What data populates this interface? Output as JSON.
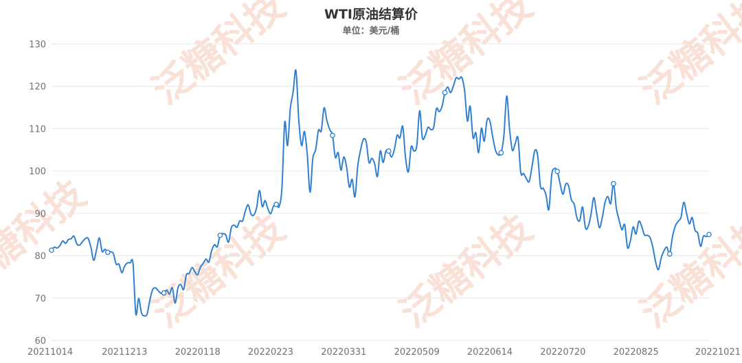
{
  "chart_data": {
    "type": "line",
    "title": "WTI原油结算价",
    "subtitle": "单位：美元/桶",
    "watermark": "泛糖科技",
    "ylim": [
      60,
      130
    ],
    "yticks": [
      60,
      70,
      80,
      90,
      100,
      110,
      120,
      130
    ],
    "xticks": [
      "20211014",
      "20211213",
      "20220118",
      "20220223",
      "20220331",
      "20220509",
      "20220614",
      "20220720",
      "20220825",
      "20221021"
    ],
    "line_color": "#2f7fd0",
    "grid": true,
    "series": [
      {
        "values": [
          81.3,
          82.0,
          81.8,
          82.4,
          83.5,
          82.9,
          83.8,
          84.0,
          84.6,
          82.8,
          82.5,
          83.3,
          84.0,
          84.1,
          82.0,
          78.9,
          81.3,
          84.2,
          81.0,
          81.5,
          80.8,
          80.9,
          80.5,
          78.0,
          78.0,
          76.0,
          77.5,
          78.3,
          78.3,
          78.2,
          66.2,
          69.9,
          66.5,
          65.8,
          66.2,
          69.5,
          72.0,
          72.4,
          71.7,
          71.1,
          71.2,
          71.9,
          70.9,
          72.4,
          68.8,
          72.4,
          73.2,
          72.0,
          75.5,
          75.8,
          77.2,
          76.2,
          75.5,
          77.3,
          78.2,
          79.2,
          78.5,
          81.2,
          82.6,
          82.1,
          84.8,
          85.2,
          84.9,
          83.2,
          86.6,
          87.2,
          86.7,
          88.2,
          88.2,
          90.6,
          92.0,
          89.8,
          89.6,
          91.4,
          95.4,
          91.6,
          93.0,
          91.1,
          89.9,
          91.7,
          92.1,
          91.6,
          96.0,
          111.5,
          106.0,
          114.8,
          118.7,
          123.7,
          112.0,
          106.0,
          109.3,
          104.0,
          95.0,
          103.0,
          105.0,
          109.6,
          109.5,
          114.9,
          111.9,
          109.8,
          108.4,
          103.2,
          104.3,
          100.2,
          103.3,
          101.0,
          96.2,
          98.0,
          93.9,
          101.3,
          105.0,
          107.5,
          106.8,
          102.0,
          103.0,
          101.7,
          98.7,
          104.7,
          102.0,
          104.7,
          104.7,
          103.3,
          105.0,
          108.4,
          107.8,
          110.5,
          103.1,
          99.8,
          105.7,
          104.7,
          106.0,
          114.2,
          107.8,
          108.4,
          110.3,
          109.8,
          110.3,
          114.7,
          114.0,
          115.3,
          118.5,
          119.8,
          118.5,
          120.0,
          122.0,
          121.7,
          122.1,
          119.0,
          111.8,
          115.3,
          107.9,
          109.0,
          104.3,
          110.1,
          107.0,
          112.0,
          111.8,
          108.1,
          104.9,
          103.8,
          104.3,
          108.3,
          117.7,
          110.0,
          104.9,
          106.4,
          107.8,
          99.6,
          99.4,
          98.2,
          97.5,
          101.0,
          104.8,
          103.7,
          96.4,
          95.9,
          94.3,
          90.9,
          99.0,
          100.6,
          99.9,
          97.0,
          94.5,
          96.9,
          96.5,
          93.2,
          92.2,
          88.9,
          88.3,
          91.5,
          86.6,
          86.9,
          89.7,
          93.7,
          90.0,
          86.6,
          89.0,
          92.6,
          94.0,
          92.3,
          97.0,
          91.3,
          88.4,
          86.1,
          87.3,
          81.9,
          83.5,
          86.8,
          85.1,
          88.1,
          87.0,
          84.9,
          84.8,
          84.3,
          82.0,
          78.5,
          76.7,
          79.5,
          81.2,
          82.0,
          80.4,
          84.5,
          87.0,
          88.1,
          89.0,
          92.6,
          90.0,
          87.5,
          89.0,
          86.0,
          85.3,
          82.2,
          84.6,
          84.5,
          85.0
        ]
      }
    ]
  }
}
